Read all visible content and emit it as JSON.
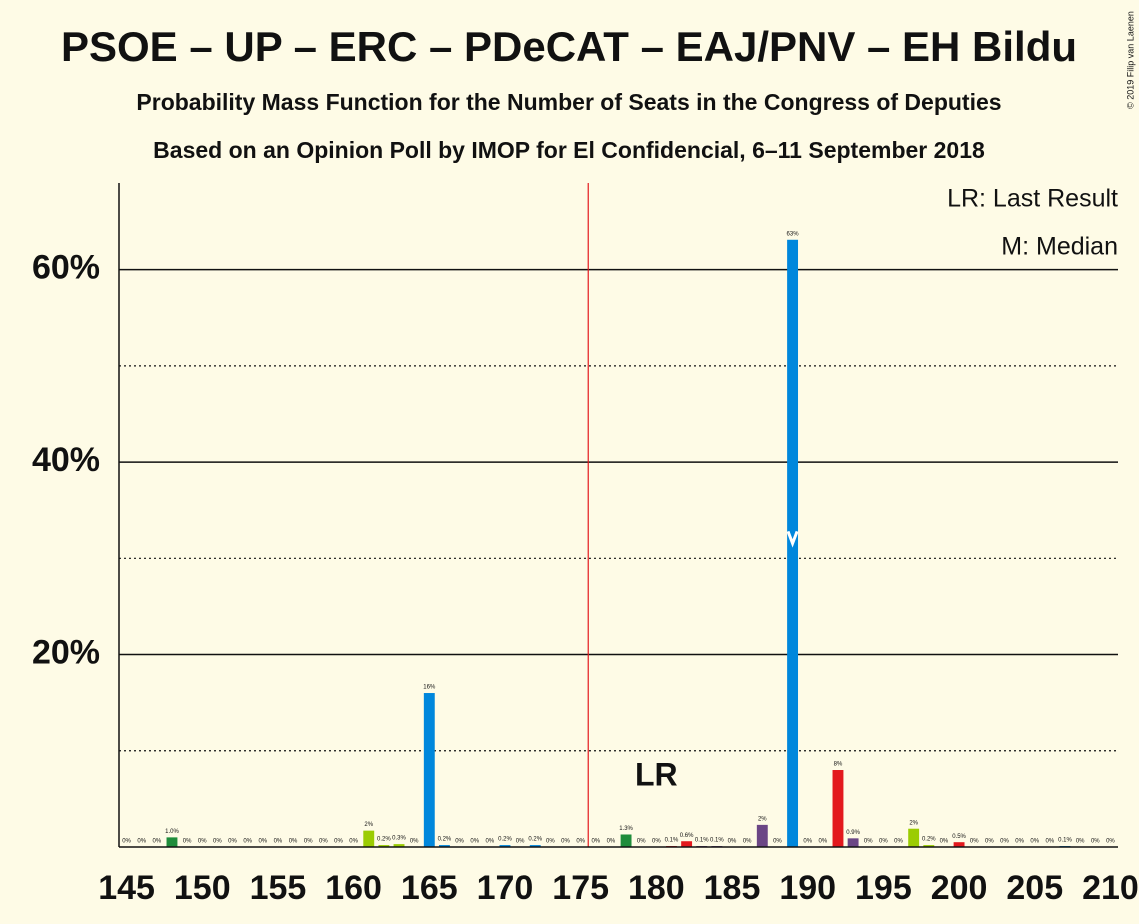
{
  "chart_data": {
    "type": "bar",
    "title": "PSOE – UP – ERC – PDeCAT – EAJ/PNV – EH Bildu",
    "subtitle": "Probability Mass Function for the Number of Seats in the Congress of Deputies",
    "subtitle2": "Based on an Opinion Poll by IMOP for El Confidencial, 6–11 September 2018",
    "copyright": "© 2019 Filip van Laenen",
    "legend_lr": "LR: Last Result",
    "legend_median": "M: Median",
    "x": [
      145,
      146,
      147,
      148,
      149,
      150,
      151,
      152,
      153,
      154,
      155,
      156,
      157,
      158,
      159,
      160,
      161,
      162,
      163,
      164,
      165,
      166,
      167,
      168,
      169,
      170,
      171,
      172,
      173,
      174,
      175,
      176,
      177,
      178,
      179,
      180,
      181,
      182,
      183,
      184,
      185,
      186,
      187,
      188,
      189,
      190,
      191,
      192,
      193,
      194,
      195,
      196,
      197,
      198,
      199,
      200,
      201,
      202,
      203,
      204,
      205,
      206,
      207,
      208,
      209,
      210
    ],
    "values": [
      0,
      0,
      0,
      1.0,
      0,
      0,
      0,
      0,
      0,
      0,
      0,
      0,
      0,
      0,
      0,
      0,
      1.7,
      0.2,
      0.3,
      0,
      16,
      0.2,
      0,
      0,
      0,
      0.2,
      0,
      0.2,
      0,
      0,
      0,
      0,
      0,
      1.3,
      0,
      0,
      0.1,
      0.6,
      0.1,
      0.1,
      0,
      0,
      2.3,
      0,
      63.1,
      0,
      0,
      8.0,
      0.9,
      0,
      0,
      0,
      1.9,
      0.2,
      0,
      0.5,
      0,
      0,
      0,
      0,
      0,
      0,
      0.1,
      0,
      0,
      0
    ],
    "value_labels": [
      "0%",
      "0%",
      "0%",
      "1.0%",
      "0%",
      "0%",
      "0%",
      "0%",
      "0%",
      "0%",
      "0%",
      "0%",
      "0%",
      "0%",
      "0%",
      "0%",
      "2%",
      "0.2%",
      "0.3%",
      "0%",
      "16%",
      "0.2%",
      "0%",
      "0%",
      "0%",
      "0.2%",
      "0%",
      "0.2%",
      "0%",
      "0%",
      "0%",
      "0%",
      "0%",
      "1.3%",
      "0%",
      "0%",
      "0.1%",
      "0.6%",
      "0.1%",
      "0.1%",
      "0%",
      "0%",
      "2%",
      "0%",
      "63%",
      "0%",
      "0%",
      "8%",
      "0.9%",
      "0%",
      "0%",
      "0%",
      "2%",
      "0.2%",
      "0%",
      "0.5%",
      "0%",
      "0%",
      "0%",
      "0%",
      "0%",
      "0%",
      "0.1%",
      "0%",
      "0%",
      "0%"
    ],
    "colors": [
      "#0087dc",
      "#0087dc",
      "#0087dc",
      "#1f8c3b",
      "#0087dc",
      "#0087dc",
      "#0087dc",
      "#0087dc",
      "#0087dc",
      "#0087dc",
      "#0087dc",
      "#0087dc",
      "#0087dc",
      "#0087dc",
      "#0087dc",
      "#0087dc",
      "#9bcc02",
      "#9bcc02",
      "#9bcc02",
      "#0087dc",
      "#0087dc",
      "#0087dc",
      "#0087dc",
      "#0087dc",
      "#0087dc",
      "#0087dc",
      "#0087dc",
      "#0087dc",
      "#0087dc",
      "#0087dc",
      "#0087dc",
      "#0087dc",
      "#0087dc",
      "#1f8c3b",
      "#0087dc",
      "#0087dc",
      "#e3191d",
      "#e3191d",
      "#6b4685",
      "#6b4685",
      "#0087dc",
      "#0087dc",
      "#6b4685",
      "#0087dc",
      "#0087dc",
      "#0087dc",
      "#0087dc",
      "#e3191d",
      "#6b4685",
      "#0087dc",
      "#0087dc",
      "#0087dc",
      "#9bcc02",
      "#9bcc02",
      "#0087dc",
      "#e3191d",
      "#0087dc",
      "#0087dc",
      "#0087dc",
      "#0087dc",
      "#0087dc",
      "#0087dc",
      "#0087dc",
      "#0087dc",
      "#0087dc",
      "#0087dc"
    ],
    "xlim": [
      144.5,
      210.5
    ],
    "xticks": [
      145,
      150,
      155,
      160,
      165,
      170,
      175,
      180,
      185,
      190,
      195,
      200,
      205,
      210
    ],
    "ylim": [
      0,
      69
    ],
    "yticks": [
      {
        "value": 20,
        "label": "20%"
      },
      {
        "value": 40,
        "label": "40%"
      },
      {
        "value": 60,
        "label": "60%"
      }
    ],
    "minor_grid": [
      10,
      30,
      50
    ],
    "majority": 176,
    "last_result": {
      "value": 180,
      "label": "LR"
    },
    "median": {
      "value": 189,
      "label": "M"
    }
  }
}
